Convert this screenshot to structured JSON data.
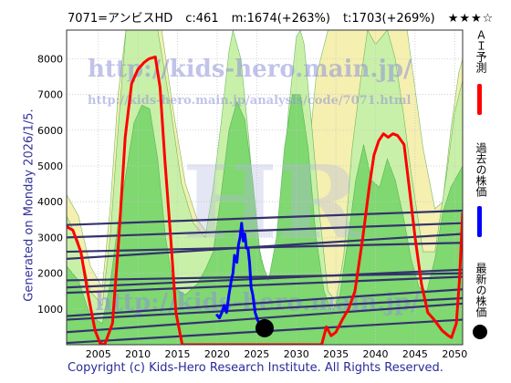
{
  "header": {
    "ticker": "7071=アンビスHD",
    "current": "c:461",
    "median": "m:1674(+263%)",
    "target": "t:1703(+269%)",
    "stars": "★★★☆"
  },
  "side_text": "Generated on Monday 2026/1/5.",
  "footer": "Copyright (c) Kids-Hero Research Institute. All Rights Reserved.",
  "watermark": {
    "url": "http://kids-hero.main.jp/",
    "path_url": "http://kids-hero.main.jp/analysis/code/7071.html",
    "bottom_url": "http://kids-hero.main.jp/",
    "big": "HR"
  },
  "legend": {
    "ai_forecast": "ＡＩ予測",
    "past_price": "過去の株価",
    "latest_price": "最新の株価"
  },
  "colors": {
    "ai_line": "#ff0000",
    "past_line": "#0000ff",
    "band_green": "#7fd870",
    "band_light_green": "#c9f0a8",
    "band_yellow": "#f5efb0",
    "trend_lines": "#33336b",
    "latest_dot": "#000000"
  },
  "chart_data": {
    "type": "line",
    "xlim": [
      2001,
      2051
    ],
    "ylim": [
      0,
      8800
    ],
    "x_ticks": [
      2005,
      2010,
      2015,
      2020,
      2025,
      2030,
      2035,
      2040,
      2045,
      2050
    ],
    "y_ticks": [
      1000,
      2000,
      3000,
      4000,
      5000,
      6000,
      7000,
      8000
    ],
    "grid": true,
    "ai_forecast": {
      "name": "ＡＩ予測",
      "points": [
        [
          2001.0,
          3300
        ],
        [
          2001.8,
          3200
        ],
        [
          2002.8,
          2600
        ],
        [
          2003.8,
          1300
        ],
        [
          2004.6,
          400
        ],
        [
          2005.2,
          50
        ],
        [
          2005.8,
          0
        ],
        [
          2006.8,
          600
        ],
        [
          2007.6,
          3000
        ],
        [
          2008.4,
          5800
        ],
        [
          2009.2,
          7300
        ],
        [
          2010.0,
          7700
        ],
        [
          2010.8,
          7900
        ],
        [
          2011.4,
          8000
        ],
        [
          2012.2,
          8050
        ],
        [
          2012.8,
          7200
        ],
        [
          2013.4,
          5200
        ],
        [
          2014.2,
          2800
        ],
        [
          2014.8,
          900
        ],
        [
          2015.6,
          0
        ],
        [
          2033.2,
          0
        ],
        [
          2033.8,
          500
        ],
        [
          2034.4,
          250
        ],
        [
          2035.0,
          350
        ],
        [
          2035.8,
          700
        ],
        [
          2036.6,
          1000
        ],
        [
          2037.4,
          1500
        ],
        [
          2038.4,
          3000
        ],
        [
          2039.2,
          4400
        ],
        [
          2039.8,
          5300
        ],
        [
          2040.4,
          5700
        ],
        [
          2041.0,
          5900
        ],
        [
          2041.6,
          5800
        ],
        [
          2042.2,
          5900
        ],
        [
          2042.8,
          5850
        ],
        [
          2043.6,
          5600
        ],
        [
          2044.2,
          4500
        ],
        [
          2045.0,
          3000
        ],
        [
          2045.8,
          1700
        ],
        [
          2046.6,
          900
        ],
        [
          2047.4,
          700
        ],
        [
          2048.4,
          400
        ],
        [
          2049.2,
          250
        ],
        [
          2049.6,
          200
        ],
        [
          2050.2,
          600
        ],
        [
          2050.6,
          1800
        ],
        [
          2051.0,
          3700
        ]
      ]
    },
    "past_price": {
      "name": "過去の株価",
      "points": [
        [
          2019.9,
          850
        ],
        [
          2020.3,
          750
        ],
        [
          2020.6,
          900
        ],
        [
          2020.9,
          1100
        ],
        [
          2021.2,
          900
        ],
        [
          2021.5,
          1400
        ],
        [
          2021.8,
          1800
        ],
        [
          2022.0,
          2000
        ],
        [
          2022.2,
          2500
        ],
        [
          2022.5,
          2300
        ],
        [
          2022.7,
          2800
        ],
        [
          2022.9,
          3000
        ],
        [
          2023.1,
          3400
        ],
        [
          2023.3,
          2900
        ],
        [
          2023.5,
          3100
        ],
        [
          2023.7,
          2700
        ],
        [
          2023.9,
          2700
        ],
        [
          2024.1,
          2300
        ],
        [
          2024.3,
          1600
        ],
        [
          2024.5,
          1400
        ],
        [
          2024.8,
          900
        ],
        [
          2025.1,
          700
        ],
        [
          2025.4,
          550
        ],
        [
          2025.8,
          480
        ],
        [
          2026.0,
          461
        ]
      ]
    },
    "latest_price": {
      "name": "最新の株価",
      "x": 2026.0,
      "y": 461
    },
    "trend_lines": [
      [
        [
          2001,
          3350
        ],
        [
          2051,
          3750
        ]
      ],
      [
        [
          2001,
          3000
        ],
        [
          2051,
          3400
        ]
      ],
      [
        [
          2001,
          2400
        ],
        [
          2051,
          3100
        ]
      ],
      [
        [
          2001,
          2600
        ],
        [
          2051,
          2850
        ]
      ],
      [
        [
          2001,
          1600
        ],
        [
          2051,
          2100
        ]
      ],
      [
        [
          2001,
          1800
        ],
        [
          2051,
          2000
        ]
      ],
      [
        [
          2001,
          1450
        ],
        [
          2051,
          1900
        ]
      ],
      [
        [
          2001,
          800
        ],
        [
          2051,
          1550
        ]
      ],
      [
        [
          2001,
          700
        ],
        [
          2051,
          1300
        ]
      ],
      [
        [
          2001,
          350
        ],
        [
          2051,
          1150
        ]
      ],
      [
        [
          2001,
          50
        ],
        [
          2051,
          700
        ]
      ]
    ],
    "bands": [
      {
        "color": "#f5efb0",
        "points": [
          [
            2001,
            4200
          ],
          [
            2002.5,
            3600
          ],
          [
            2004,
            2200
          ],
          [
            2005.5,
            1600
          ],
          [
            2006.5,
            3800
          ],
          [
            2007.5,
            7000
          ],
          [
            2008.5,
            8800
          ],
          [
            2013,
            8800
          ],
          [
            2014.5,
            6500
          ],
          [
            2016,
            4500
          ],
          [
            2017.5,
            3500
          ],
          [
            2018.5,
            3200
          ],
          [
            2020,
            1500
          ],
          [
            2021,
            1600
          ],
          [
            2022.5,
            2400
          ],
          [
            2023.5,
            3300
          ],
          [
            2025,
            2500
          ],
          [
            2026.5,
            1300
          ],
          [
            2028,
            600
          ],
          [
            2030,
            2000
          ],
          [
            2031.5,
            5200
          ],
          [
            2032.5,
            7500
          ],
          [
            2034,
            8800
          ],
          [
            2040,
            8800
          ],
          [
            2040.5,
            8800
          ],
          [
            2044,
            8800
          ],
          [
            2046,
            5500
          ],
          [
            2047.5,
            3800
          ],
          [
            2048.5,
            4000
          ],
          [
            2049.5,
            6000
          ],
          [
            2050.5,
            7600
          ],
          [
            2051,
            8000
          ]
        ]
      },
      {
        "color": "#c9f0a8",
        "points": [
          [
            2001,
            3600
          ],
          [
            2002.5,
            2900
          ],
          [
            2004,
            1500
          ],
          [
            2005.5,
            1100
          ],
          [
            2006.5,
            3000
          ],
          [
            2007.5,
            6000
          ],
          [
            2008.5,
            8800
          ],
          [
            2009.5,
            8800
          ],
          [
            2012.5,
            8800
          ],
          [
            2014,
            6800
          ],
          [
            2015.5,
            4500
          ],
          [
            2017,
            3400
          ],
          [
            2018.5,
            3000
          ],
          [
            2019.5,
            4400
          ],
          [
            2020.5,
            6200
          ],
          [
            2021.5,
            8200
          ],
          [
            2022,
            8800
          ],
          [
            2023,
            8000
          ],
          [
            2024,
            5800
          ],
          [
            2025,
            3000
          ],
          [
            2026.5,
            1600
          ],
          [
            2028,
            3000
          ],
          [
            2029,
            6500
          ],
          [
            2030,
            8600
          ],
          [
            2030.5,
            8800
          ],
          [
            2031,
            8400
          ],
          [
            2032,
            6000
          ],
          [
            2033,
            3500
          ],
          [
            2034,
            1500
          ],
          [
            2035,
            1200
          ],
          [
            2036,
            2500
          ],
          [
            2037,
            5400
          ],
          [
            2038,
            7200
          ],
          [
            2039,
            8800
          ],
          [
            2040,
            8400
          ],
          [
            2041.5,
            8800
          ],
          [
            2042.5,
            8000
          ],
          [
            2043.5,
            6500
          ],
          [
            2044.5,
            4800
          ],
          [
            2046,
            2600
          ],
          [
            2047.5,
            2600
          ],
          [
            2049,
            4800
          ],
          [
            2050,
            6500
          ],
          [
            2051,
            7400
          ]
        ]
      },
      {
        "color": "#7fd870",
        "points": [
          [
            2001,
            0
          ],
          [
            2001,
            2200
          ],
          [
            2002.5,
            1800
          ],
          [
            2004,
            800
          ],
          [
            2005.5,
            600
          ],
          [
            2006.5,
            1700
          ],
          [
            2007.5,
            3400
          ],
          [
            2008.5,
            4800
          ],
          [
            2009.5,
            6200
          ],
          [
            2010.5,
            6700
          ],
          [
            2011.5,
            6600
          ],
          [
            2012.5,
            5200
          ],
          [
            2013.5,
            3000
          ],
          [
            2014.5,
            1600
          ],
          [
            2016,
            1400
          ],
          [
            2017.5,
            1700
          ],
          [
            2018.5,
            2100
          ],
          [
            2019.5,
            2600
          ],
          [
            2020.5,
            4200
          ],
          [
            2021.5,
            6000
          ],
          [
            2022.5,
            6800
          ],
          [
            2023.5,
            6300
          ],
          [
            2024.5,
            4600
          ],
          [
            2025.5,
            2400
          ],
          [
            2026.5,
            1800
          ],
          [
            2027.5,
            3000
          ],
          [
            2028.5,
            5500
          ],
          [
            2029.5,
            7000
          ],
          [
            2030.5,
            7000
          ],
          [
            2031.5,
            5500
          ],
          [
            2032.5,
            3000
          ],
          [
            2033.5,
            1500
          ],
          [
            2034.5,
            900
          ],
          [
            2035.5,
            1400
          ],
          [
            2036.5,
            2900
          ],
          [
            2037.5,
            4600
          ],
          [
            2038.5,
            5600
          ],
          [
            2039.5,
            4600
          ],
          [
            2040.5,
            4400
          ],
          [
            2041.5,
            5200
          ],
          [
            2042.5,
            4600
          ],
          [
            2043.5,
            3600
          ],
          [
            2044.5,
            2400
          ],
          [
            2045.5,
            1600
          ],
          [
            2046.5,
            1500
          ],
          [
            2047.5,
            2400
          ],
          [
            2048.5,
            3700
          ],
          [
            2049.5,
            4400
          ],
          [
            2050.5,
            4800
          ],
          [
            2051,
            5000
          ],
          [
            2051,
            0
          ]
        ]
      }
    ]
  }
}
